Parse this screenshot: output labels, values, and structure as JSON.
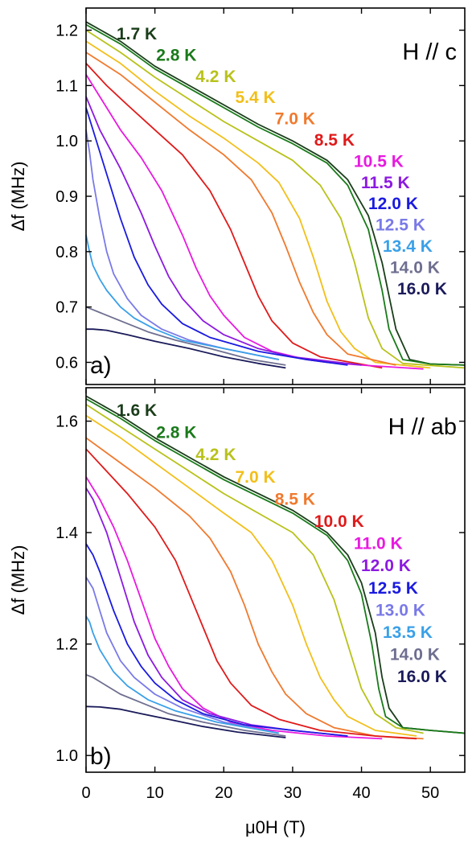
{
  "chart_data": [
    {
      "type": "line",
      "panel_label": "a)",
      "annotation": "H // c",
      "ylabel": "Δf (MHz)",
      "xlim": [
        0,
        55
      ],
      "ylim": [
        0.56,
        1.24
      ],
      "yticks": [
        0.6,
        0.7,
        0.8,
        0.9,
        1.0,
        1.1,
        1.2
      ],
      "ytick_labels": [
        "0.6",
        "0.7",
        "0.8",
        "0.9",
        "1.0",
        "1.1",
        "1.2"
      ],
      "xticks": [
        0,
        10,
        20,
        30,
        40,
        50
      ],
      "grid": false,
      "series": [
        {
          "name": "1.7 K",
          "color": "#1a3d1a",
          "x": [
            0,
            5,
            10,
            15,
            20,
            25,
            30,
            35,
            38,
            41,
            43,
            45,
            47,
            50,
            55
          ],
          "y": [
            1.215,
            1.18,
            1.135,
            1.1,
            1.065,
            1.03,
            1.0,
            0.965,
            0.93,
            0.865,
            0.78,
            0.66,
            0.605,
            0.597,
            0.595
          ]
        },
        {
          "name": "2.8 K",
          "color": "#1a7a1a",
          "x": [
            0,
            5,
            10,
            15,
            20,
            25,
            30,
            35,
            38,
            41,
            43,
            44,
            46,
            50,
            55
          ],
          "y": [
            1.21,
            1.175,
            1.13,
            1.095,
            1.06,
            1.025,
            0.995,
            0.96,
            0.92,
            0.84,
            0.73,
            0.66,
            0.605,
            0.597,
            0.595
          ]
        },
        {
          "name": "4.2 K",
          "color": "#b8c21a",
          "x": [
            0,
            5,
            10,
            15,
            20,
            25,
            30,
            34,
            37,
            39,
            41,
            43,
            46,
            55
          ],
          "y": [
            1.2,
            1.16,
            1.115,
            1.075,
            1.035,
            1.0,
            0.965,
            0.92,
            0.86,
            0.78,
            0.68,
            0.625,
            0.598,
            0.59
          ]
        },
        {
          "name": "5.4 K",
          "color": "#f2bf1a",
          "x": [
            0,
            5,
            10,
            15,
            20,
            25,
            28,
            31,
            33,
            35,
            37,
            39,
            42,
            50
          ],
          "y": [
            1.18,
            1.14,
            1.09,
            1.045,
            1.005,
            0.96,
            0.925,
            0.86,
            0.79,
            0.71,
            0.655,
            0.625,
            0.6,
            0.59
          ]
        },
        {
          "name": "7.0 K",
          "color": "#f07a2e",
          "x": [
            0,
            5,
            10,
            15,
            20,
            24,
            27,
            29,
            31,
            33,
            35,
            38,
            45
          ],
          "y": [
            1.16,
            1.12,
            1.07,
            1.02,
            0.975,
            0.93,
            0.87,
            0.81,
            0.745,
            0.69,
            0.65,
            0.615,
            0.595
          ]
        },
        {
          "name": "8.5 K",
          "color": "#e01a1a",
          "x": [
            0,
            3,
            6,
            10,
            14,
            18,
            21,
            23,
            25,
            27,
            30,
            34,
            43
          ],
          "y": [
            1.14,
            1.1,
            1.065,
            1.02,
            0.975,
            0.91,
            0.84,
            0.78,
            0.72,
            0.675,
            0.635,
            0.61,
            0.59
          ]
        },
        {
          "name": "10.5 K",
          "color": "#e81ae0",
          "x": [
            0,
            2,
            5,
            8,
            11,
            14,
            16,
            18,
            20,
            23,
            27,
            32,
            35,
            40,
            49
          ],
          "y": [
            1.12,
            1.08,
            1.02,
            0.97,
            0.91,
            0.83,
            0.77,
            0.72,
            0.685,
            0.645,
            0.62,
            0.605,
            0.6,
            0.595,
            0.588
          ]
        },
        {
          "name": "11.5 K",
          "color": "#8c1ae0",
          "x": [
            0,
            2,
            5,
            8,
            10,
            12,
            14,
            17,
            20,
            25,
            30,
            40
          ],
          "y": [
            1.08,
            1.02,
            0.95,
            0.87,
            0.81,
            0.755,
            0.715,
            0.675,
            0.65,
            0.625,
            0.61,
            0.595
          ]
        },
        {
          "name": "12.0 K",
          "color": "#1a1ae0",
          "x": [
            0,
            1,
            3,
            5,
            7,
            9,
            11,
            14,
            18,
            25,
            32,
            38
          ],
          "y": [
            1.06,
            1.02,
            0.94,
            0.86,
            0.79,
            0.74,
            0.705,
            0.67,
            0.645,
            0.62,
            0.605,
            0.595
          ]
        },
        {
          "name": "12.5 K",
          "color": "#7a7ae8",
          "x": [
            0,
            0.5,
            1,
            2,
            3,
            4,
            6,
            8,
            11,
            15,
            20,
            28
          ],
          "y": [
            1.02,
            0.98,
            0.93,
            0.86,
            0.8,
            0.76,
            0.715,
            0.685,
            0.66,
            0.64,
            0.625,
            0.605
          ]
        },
        {
          "name": "13.4 K",
          "color": "#3aa0e8",
          "x": [
            0,
            0.5,
            1,
            2,
            3,
            5,
            7,
            10,
            14,
            20,
            28
          ],
          "y": [
            0.83,
            0.8,
            0.775,
            0.75,
            0.73,
            0.7,
            0.68,
            0.66,
            0.64,
            0.625,
            0.605
          ]
        },
        {
          "name": "14.0 K",
          "color": "#6e6e90",
          "x": [
            0,
            1,
            2,
            4,
            6,
            9,
            13,
            18,
            24,
            29
          ],
          "y": [
            0.7,
            0.695,
            0.69,
            0.68,
            0.67,
            0.655,
            0.64,
            0.625,
            0.605,
            0.595
          ]
        },
        {
          "name": "16.0 K",
          "color": "#1a1a5a",
          "x": [
            0,
            1,
            3,
            6,
            10,
            15,
            20,
            25,
            29
          ],
          "y": [
            0.66,
            0.66,
            0.658,
            0.65,
            0.638,
            0.625,
            0.61,
            0.598,
            0.59
          ]
        }
      ]
    },
    {
      "type": "line",
      "panel_label": "b)",
      "annotation": "H // ab",
      "xlabel": "μ0H (T)",
      "ylabel": "Δf (MHz)",
      "xlim": [
        0,
        55
      ],
      "ylim": [
        0.97,
        1.66
      ],
      "yticks": [
        1.0,
        1.2,
        1.4,
        1.6
      ],
      "ytick_labels": [
        "1.0",
        "1.2",
        "1.4",
        "1.6"
      ],
      "xticks": [
        0,
        10,
        20,
        30,
        40,
        50
      ],
      "xtick_labels": [
        "0",
        "10",
        "20",
        "30",
        "40",
        "50"
      ],
      "grid": false,
      "series": [
        {
          "name": "1.6 K",
          "color": "#1a3d1a",
          "x": [
            0,
            5,
            10,
            15,
            20,
            25,
            30,
            35,
            38,
            40,
            42,
            43,
            44,
            46,
            50,
            55
          ],
          "y": [
            1.645,
            1.61,
            1.57,
            1.535,
            1.5,
            1.47,
            1.44,
            1.4,
            1.36,
            1.31,
            1.22,
            1.14,
            1.085,
            1.05,
            1.045,
            1.04
          ]
        },
        {
          "name": "2.8 K",
          "color": "#1a7a1a",
          "x": [
            0,
            5,
            10,
            15,
            20,
            25,
            30,
            35,
            38,
            40,
            41.5,
            42.5,
            43.5,
            46,
            50,
            55
          ],
          "y": [
            1.64,
            1.605,
            1.565,
            1.53,
            1.495,
            1.465,
            1.435,
            1.395,
            1.35,
            1.29,
            1.2,
            1.12,
            1.07,
            1.05,
            1.045,
            1.04
          ]
        },
        {
          "name": "4.2 K",
          "color": "#b8c21a",
          "x": [
            0,
            5,
            10,
            15,
            20,
            25,
            30,
            33,
            36,
            38,
            40,
            42,
            45,
            49
          ],
          "y": [
            1.63,
            1.59,
            1.55,
            1.51,
            1.47,
            1.435,
            1.4,
            1.36,
            1.28,
            1.2,
            1.12,
            1.075,
            1.05,
            1.04
          ]
        },
        {
          "name": "7.0 K",
          "color": "#f2bf1a",
          "x": [
            0,
            5,
            10,
            15,
            20,
            24,
            27,
            30,
            32,
            34,
            36,
            38,
            42,
            48
          ],
          "y": [
            1.61,
            1.57,
            1.525,
            1.48,
            1.435,
            1.4,
            1.35,
            1.27,
            1.2,
            1.14,
            1.1,
            1.07,
            1.045,
            1.035
          ]
        },
        {
          "name": "8.5 K",
          "color": "#f07a2e",
          "x": [
            0,
            5,
            10,
            15,
            18,
            21,
            23,
            25,
            27,
            29,
            32,
            36,
            42,
            49
          ],
          "y": [
            1.57,
            1.525,
            1.48,
            1.43,
            1.39,
            1.33,
            1.27,
            1.2,
            1.15,
            1.11,
            1.075,
            1.05,
            1.035,
            1.03
          ]
        },
        {
          "name": "10.0 K",
          "color": "#e01a1a",
          "x": [
            0,
            3,
            6,
            10,
            13,
            15,
            17,
            19,
            21,
            24,
            28,
            34,
            42,
            48
          ],
          "y": [
            1.55,
            1.51,
            1.47,
            1.41,
            1.35,
            1.29,
            1.23,
            1.17,
            1.13,
            1.09,
            1.065,
            1.045,
            1.035,
            1.03
          ]
        },
        {
          "name": "11.0 K",
          "color": "#e81ae0",
          "x": [
            0,
            2,
            4,
            6,
            8,
            10,
            12,
            14,
            17,
            21,
            27,
            35,
            43
          ],
          "y": [
            1.5,
            1.46,
            1.41,
            1.35,
            1.28,
            1.21,
            1.16,
            1.12,
            1.085,
            1.06,
            1.045,
            1.035,
            1.03
          ]
        },
        {
          "name": "12.0 K",
          "color": "#8c1ae0",
          "x": [
            0,
            1,
            3,
            5,
            7,
            9,
            11,
            14,
            18,
            24,
            30,
            38
          ],
          "y": [
            1.48,
            1.46,
            1.4,
            1.32,
            1.24,
            1.18,
            1.14,
            1.1,
            1.075,
            1.055,
            1.045,
            1.035
          ]
        },
        {
          "name": "12.5 K",
          "color": "#1a1ae0",
          "x": [
            0,
            1,
            2,
            4,
            6,
            8,
            10,
            13,
            17,
            23,
            30,
            38
          ],
          "y": [
            1.38,
            1.36,
            1.33,
            1.26,
            1.2,
            1.16,
            1.13,
            1.1,
            1.075,
            1.055,
            1.045,
            1.035
          ]
        },
        {
          "name": "13.0 K",
          "color": "#7a7ae8",
          "x": [
            0,
            1,
            2,
            3,
            5,
            7,
            10,
            14,
            20,
            28
          ],
          "y": [
            1.32,
            1.3,
            1.26,
            1.22,
            1.17,
            1.14,
            1.11,
            1.085,
            1.06,
            1.04
          ]
        },
        {
          "name": "13.5 K",
          "color": "#3aa0e8",
          "x": [
            0,
            0.5,
            1,
            2,
            4,
            6,
            9,
            13,
            19,
            28
          ],
          "y": [
            1.25,
            1.24,
            1.22,
            1.19,
            1.15,
            1.125,
            1.1,
            1.08,
            1.06,
            1.04
          ]
        },
        {
          "name": "14.0 K",
          "color": "#6e6e90",
          "x": [
            0,
            1,
            3,
            5,
            8,
            12,
            17,
            23,
            29
          ],
          "y": [
            1.145,
            1.14,
            1.125,
            1.11,
            1.095,
            1.075,
            1.06,
            1.045,
            1.035
          ]
        },
        {
          "name": "16.0 K",
          "color": "#1a1a5a",
          "x": [
            0,
            2,
            5,
            8,
            12,
            17,
            22,
            29
          ],
          "y": [
            1.088,
            1.087,
            1.083,
            1.075,
            1.065,
            1.052,
            1.042,
            1.032
          ]
        }
      ]
    }
  ]
}
